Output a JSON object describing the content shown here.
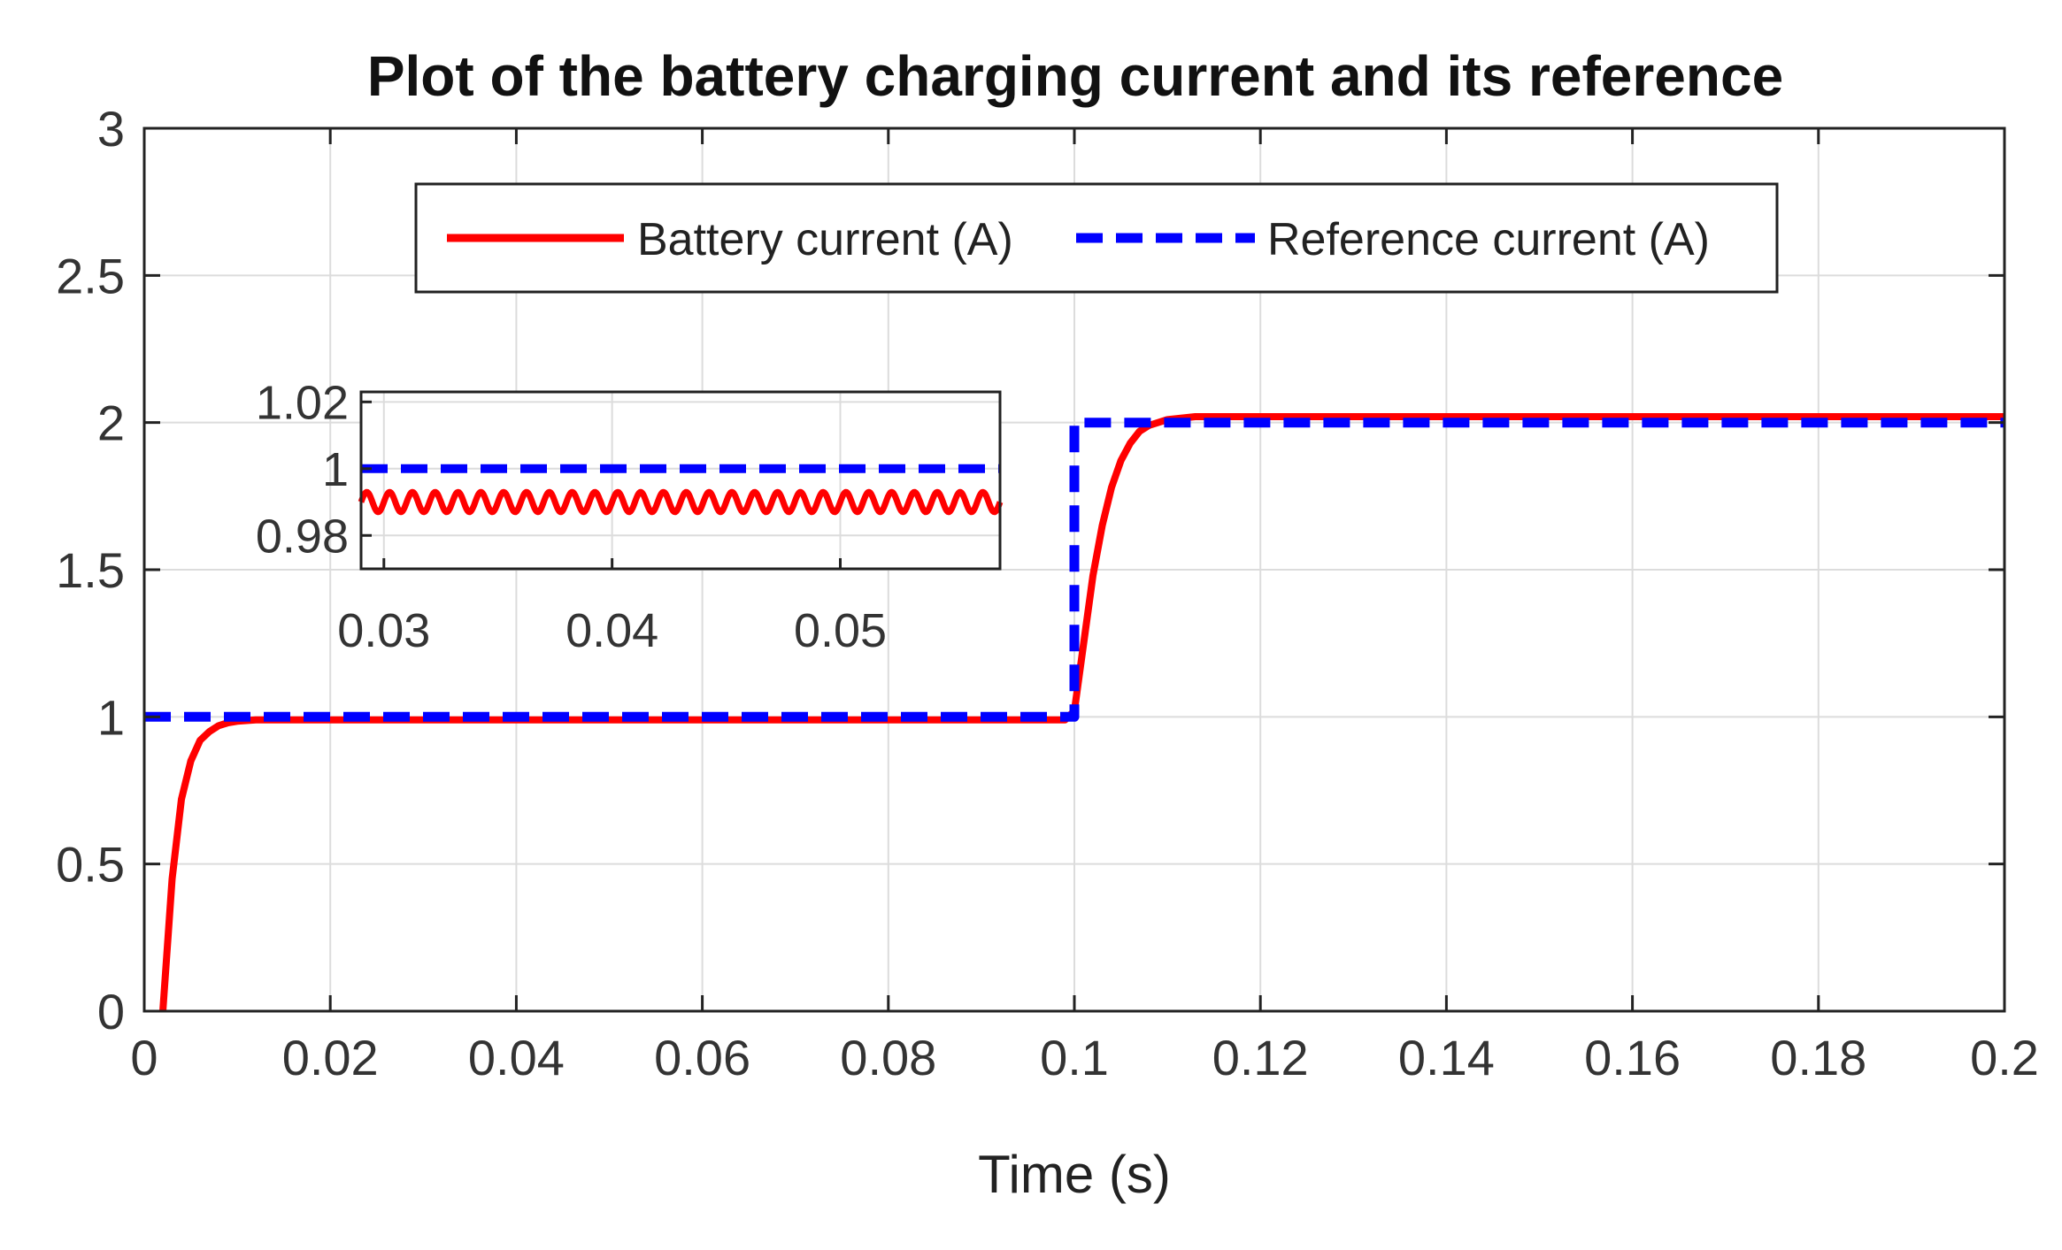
{
  "chart_data": {
    "type": "line",
    "title": "Plot of the battery charging current and its reference",
    "xlabel": "Time (s)",
    "ylabel": "",
    "xlim": [
      0,
      0.2
    ],
    "ylim": [
      0,
      3
    ],
    "xticks": [
      0,
      0.02,
      0.04,
      0.06,
      0.08,
      0.1,
      0.12,
      0.14,
      0.16,
      0.18,
      0.2
    ],
    "xtick_labels": [
      "0",
      "0.02",
      "0.04",
      "0.06",
      "0.08",
      "0.1",
      "0.12",
      "0.14",
      "0.16",
      "0.18",
      "0.2"
    ],
    "yticks": [
      0,
      0.5,
      1,
      1.5,
      2,
      2.5,
      3
    ],
    "ytick_labels": [
      "0",
      "0.5",
      "1",
      "1.5",
      "2",
      "2.5",
      "3"
    ],
    "grid": true,
    "legend": {
      "placement": "top-center",
      "orientation": "horizontal",
      "entries": [
        "Battery current (A)",
        "Reference current (A)"
      ]
    },
    "series": [
      {
        "name": "Battery current (A)",
        "color": "#ff0000",
        "style": "solid",
        "x": [
          0.002,
          0.003,
          0.004,
          0.005,
          0.006,
          0.007,
          0.008,
          0.009,
          0.01,
          0.012,
          0.015,
          0.02,
          0.04,
          0.06,
          0.08,
          0.099,
          0.1,
          0.101,
          0.102,
          0.103,
          0.104,
          0.105,
          0.106,
          0.107,
          0.108,
          0.11,
          0.113,
          0.12,
          0.14,
          0.16,
          0.18,
          0.2
        ],
        "y": [
          0.0,
          0.45,
          0.72,
          0.85,
          0.92,
          0.95,
          0.97,
          0.98,
          0.985,
          0.99,
          0.99,
          0.99,
          0.99,
          0.99,
          0.99,
          0.99,
          1.02,
          1.25,
          1.48,
          1.65,
          1.78,
          1.87,
          1.93,
          1.97,
          1.99,
          2.01,
          2.02,
          2.02,
          2.02,
          2.02,
          2.02,
          2.02
        ]
      },
      {
        "name": "Reference current (A)",
        "color": "#0000ff",
        "style": "dashed",
        "x": [
          0,
          0.1,
          0.1,
          0.2
        ],
        "y": [
          1,
          1,
          2,
          2
        ]
      }
    ],
    "inset": {
      "xlim": [
        0.029,
        0.057
      ],
      "ylim": [
        0.97,
        1.023
      ],
      "xticks": [
        0.03,
        0.04,
        0.05
      ],
      "xtick_labels": [
        "0.03",
        "0.04",
        "0.05"
      ],
      "yticks": [
        0.98,
        1,
        1.02
      ],
      "ytick_labels": [
        "0.98",
        "1",
        "1.02"
      ],
      "series": [
        {
          "name": "Battery current (A)",
          "color": "#ff0000",
          "style": "solid",
          "mean": 0.99,
          "ripple_amplitude": 0.003,
          "ripple_period": 0.001
        },
        {
          "name": "Reference current (A)",
          "color": "#0000ff",
          "style": "dashed",
          "x": [
            0.029,
            0.057
          ],
          "y": [
            1,
            1
          ]
        }
      ]
    }
  }
}
